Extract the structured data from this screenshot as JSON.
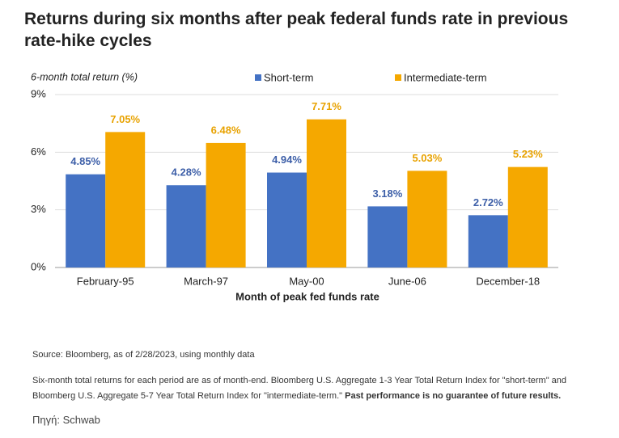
{
  "chart_data": {
    "type": "bar",
    "title": "Returns during six months after peak federal funds rate in previous rate-hike cycles",
    "y_axis_label": "6-month total return (%)",
    "x_axis_label": "Month of peak fed funds rate",
    "categories": [
      "February-95",
      "March-97",
      "May-00",
      "June-06",
      "December-18"
    ],
    "series": [
      {
        "name": "Short-term",
        "color": "#4472c4",
        "values": [
          4.85,
          4.28,
          4.94,
          3.18,
          2.72
        ],
        "value_labels": [
          "4.85%",
          "4.28%",
          "4.94%",
          "3.18%",
          "2.72%"
        ]
      },
      {
        "name": "Intermediate-term",
        "color": "#f5a800",
        "values": [
          7.05,
          6.48,
          7.71,
          5.03,
          5.23
        ],
        "value_labels": [
          "7.05%",
          "6.48%",
          "7.71%",
          "5.03%",
          "5.23%"
        ]
      }
    ],
    "ylim": [
      0,
      9
    ],
    "yticks": [
      {
        "value": 0,
        "label": "0%"
      },
      {
        "value": 3,
        "label": "3%"
      },
      {
        "value": 6,
        "label": "6%"
      },
      {
        "value": 9,
        "label": "9%"
      }
    ],
    "grid": true,
    "source": "Source: Bloomberg, as of 2/28/2023, using monthly data",
    "footnote": "Six-month total returns for each period are as of month-end. Bloomberg U.S. Aggregate 1-3 Year Total Return Index for \"short-term\" and Bloomberg U.S. Aggregate 5-7 Year Total Return Index for \"intermediate-term.\"",
    "footnote_bold": "Past performance is no guarantee of future results.",
    "credit": "Πηγή: Schwab"
  }
}
